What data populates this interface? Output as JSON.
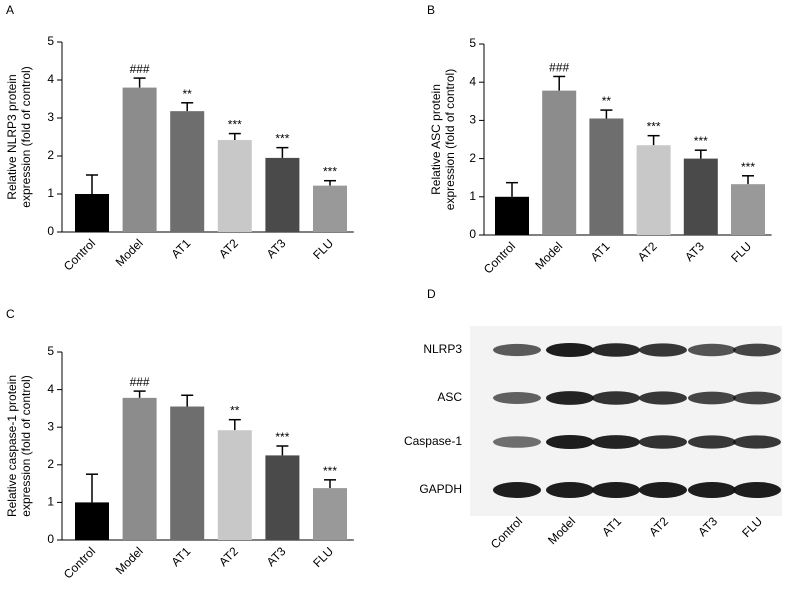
{
  "chart_data": [
    {
      "type": "bar",
      "panel": "A",
      "ylabel": [
        "Relative NLRP3 protein",
        "expression (fold of control)"
      ],
      "categories": [
        "Control",
        "Model",
        "AT1",
        "AT2",
        "AT3",
        "FLU"
      ],
      "values": [
        1.0,
        3.8,
        3.18,
        2.42,
        1.95,
        1.22
      ],
      "errors": [
        0.5,
        0.25,
        0.22,
        0.17,
        0.27,
        0.13
      ],
      "significance": [
        null,
        "###",
        "**",
        "***",
        "***",
        "***"
      ],
      "colors": [
        "#000000",
        "#8c8c8c",
        "#6e6e6e",
        "#c8c8c8",
        "#4a4a4a",
        "#999999"
      ],
      "ylim": [
        0,
        5
      ],
      "yticks": [
        0,
        1,
        2,
        3,
        4,
        5
      ]
    },
    {
      "type": "bar",
      "panel": "B",
      "ylabel": [
        "Relative ASC protein",
        "expression (fold of control)"
      ],
      "categories": [
        "Control",
        "Model",
        "AT1",
        "AT2",
        "AT3",
        "FLU"
      ],
      "values": [
        1.0,
        3.78,
        3.05,
        2.35,
        2.0,
        1.33
      ],
      "errors": [
        0.37,
        0.37,
        0.22,
        0.25,
        0.22,
        0.22
      ],
      "significance": [
        null,
        "###",
        "**",
        "***",
        "***",
        "***"
      ],
      "colors": [
        "#000000",
        "#8c8c8c",
        "#6e6e6e",
        "#c8c8c8",
        "#4a4a4a",
        "#999999"
      ],
      "ylim": [
        0,
        5
      ],
      "yticks": [
        0,
        1,
        2,
        3,
        4,
        5
      ]
    },
    {
      "type": "bar",
      "panel": "C",
      "ylabel": [
        "Relative caspase-1 protein",
        "expression (fold of control)"
      ],
      "categories": [
        "Control",
        "Model",
        "AT1",
        "AT2",
        "AT3",
        "FLU"
      ],
      "values": [
        1.0,
        3.78,
        3.55,
        2.92,
        2.25,
        1.38
      ],
      "errors": [
        0.75,
        0.18,
        0.3,
        0.28,
        0.25,
        0.22
      ],
      "significance": [
        null,
        "###",
        null,
        "**",
        "***",
        "***"
      ],
      "colors": [
        "#000000",
        "#8c8c8c",
        "#6e6e6e",
        "#c8c8c8",
        "#4a4a4a",
        "#999999"
      ],
      "ylim": [
        0,
        5
      ],
      "yticks": [
        0,
        1,
        2,
        3,
        4,
        5
      ]
    }
  ],
  "blot": {
    "panel": "D",
    "rows": [
      "NLRP3",
      "ASC",
      "Caspase-1",
      "GAPDH"
    ],
    "columns": [
      "Control",
      "Model",
      "AT1",
      "AT2",
      "AT3",
      "FLU"
    ]
  }
}
